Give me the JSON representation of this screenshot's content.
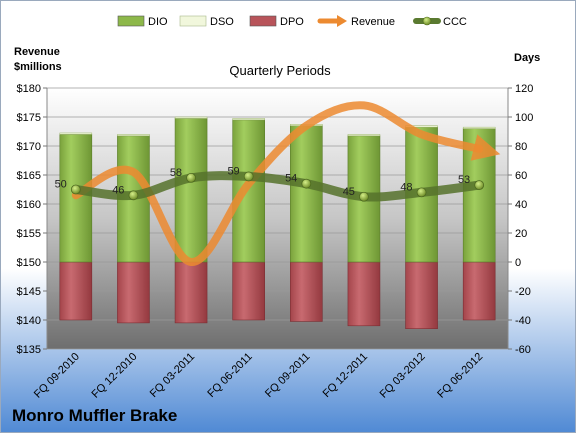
{
  "company": "Monro Muffler Brake",
  "legend": {
    "items": [
      {
        "key": "dio",
        "label": "DIO",
        "color": "#8db84a"
      },
      {
        "key": "dso",
        "label": "DSO",
        "color": "#f1f7dc"
      },
      {
        "key": "dpo",
        "label": "DPO",
        "color": "#b8545a"
      },
      {
        "key": "revenue",
        "label": "Revenue",
        "color": "#ec8a30"
      },
      {
        "key": "ccc",
        "label": "CCC",
        "color": "#5a7a30"
      }
    ]
  },
  "chart_data": {
    "type": "bar",
    "subtitle": "Quarterly Periods",
    "left_axis": {
      "label_line1": "Revenue",
      "label_line2": "$millions",
      "min": 135,
      "max": 180,
      "step": 5,
      "ticks": [
        "$135",
        "$140",
        "$145",
        "$150",
        "$155",
        "$160",
        "$165",
        "$170",
        "$175",
        "$180"
      ]
    },
    "right_axis": {
      "label": "Days",
      "min": -60,
      "max": 120,
      "step": 20,
      "ticks": [
        "-60",
        "-40",
        "-20",
        "0",
        "20",
        "40",
        "60",
        "80",
        "100",
        "120"
      ]
    },
    "categories": [
      "FQ 09-2010",
      "FQ 12-2010",
      "FQ 03-2011",
      "FQ 06-2011",
      "FQ 09-2011",
      "FQ 12-2011",
      "FQ 03-2012",
      "FQ 06-2012"
    ],
    "series": [
      {
        "name": "DIO",
        "axis": "right",
        "values": [
          88,
          87,
          99,
          98,
          94,
          87,
          93,
          92
        ]
      },
      {
        "name": "DSO",
        "axis": "right",
        "values": [
          1,
          1,
          1,
          1,
          1,
          1,
          1,
          1
        ]
      },
      {
        "name": "DPO",
        "axis": "right",
        "values": [
          -40,
          -42,
          -42,
          -40,
          -41,
          -44,
          -46,
          -40
        ]
      },
      {
        "name": "Revenue",
        "axis": "left",
        "values": [
          161.5,
          165.5,
          150,
          163.5,
          173.5,
          177,
          172,
          169.5
        ]
      },
      {
        "name": "CCC",
        "axis": "right",
        "values": [
          50,
          46,
          58,
          59,
          54,
          45,
          48,
          53
        ]
      }
    ],
    "ccc_labels": [
      "50",
      "46",
      "58",
      "59",
      "54",
      "45",
      "48",
      "53"
    ]
  }
}
